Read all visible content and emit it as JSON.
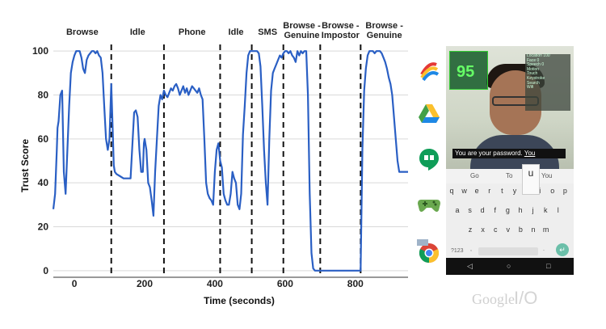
{
  "chart_data": {
    "type": "line",
    "title": "",
    "xlabel": "Time (seconds)",
    "ylabel": "Trust Score",
    "x_ticks": [
      0,
      200,
      400,
      600,
      800
    ],
    "y_ticks": [
      0,
      20,
      40,
      60,
      80,
      100
    ],
    "xlim": [
      -60,
      950
    ],
    "ylim": [
      -3,
      103
    ],
    "series_color": "#2a5fc4",
    "segments": [
      {
        "label": "Browse",
        "start": -60,
        "end": 105
      },
      {
        "label": "Idle",
        "start": 105,
        "end": 255
      },
      {
        "label": "Phone",
        "start": 255,
        "end": 415
      },
      {
        "label": "Idle",
        "start": 415,
        "end": 505
      },
      {
        "label": "SMS",
        "start": 505,
        "end": 595
      },
      {
        "label": "Browse - Genuine",
        "start": 595,
        "end": 700
      },
      {
        "label": "Browse - Impostor",
        "start": 700,
        "end": 815
      },
      {
        "label": "Browse - Genuine",
        "start": 815,
        "end": 950
      }
    ],
    "boundaries": [
      105,
      255,
      415,
      505,
      595,
      700,
      815
    ],
    "series": [
      {
        "x": [
          -60,
          -55,
          -50,
          -48,
          -45,
          -40,
          -35,
          -30,
          -25,
          -20,
          -15,
          -10,
          -5,
          0,
          5,
          10,
          15,
          20,
          25,
          30,
          35,
          40,
          45,
          50,
          55,
          60,
          65,
          70,
          75,
          80,
          85,
          90,
          95,
          100,
          105,
          108,
          112,
          115,
          120,
          130,
          140,
          150,
          160,
          170,
          175,
          180,
          185,
          190,
          195,
          198,
          200,
          205,
          210,
          215,
          220,
          225,
          230,
          235,
          240,
          245,
          250,
          255,
          260,
          265,
          270,
          275,
          280,
          285,
          290,
          295,
          300,
          305,
          310,
          315,
          320,
          325,
          330,
          335,
          340,
          345,
          350,
          355,
          360,
          365,
          370,
          375,
          380,
          385,
          390,
          395,
          400,
          405,
          410,
          415,
          420,
          425,
          430,
          435,
          440,
          445,
          450,
          455,
          460,
          465,
          470,
          475,
          480,
          485,
          490,
          495,
          500,
          505,
          510,
          515,
          520,
          525,
          530,
          535,
          540,
          545,
          550,
          555,
          560,
          565,
          570,
          575,
          580,
          585,
          590,
          595,
          600,
          605,
          610,
          615,
          620,
          625,
          630,
          635,
          640,
          645,
          650,
          655,
          660,
          665,
          670,
          675,
          680,
          685,
          690,
          695,
          700,
          705,
          710,
          715,
          720,
          730,
          760,
          790,
          810,
          815,
          820,
          825,
          830,
          835,
          840,
          845,
          850,
          855,
          860,
          865,
          870,
          875,
          880,
          885,
          890,
          895,
          900,
          905,
          910,
          915,
          920,
          925,
          930,
          940,
          950
        ],
        "y": [
          28,
          35,
          55,
          65,
          68,
          80,
          82,
          45,
          35,
          55,
          75,
          90,
          95,
          98,
          100,
          100,
          100,
          97,
          92,
          90,
          96,
          98,
          99,
          100,
          100,
          99,
          100,
          98,
          97,
          90,
          75,
          60,
          55,
          60,
          85,
          70,
          48,
          45,
          44,
          43,
          42,
          42,
          42,
          72,
          73,
          70,
          55,
          45,
          45,
          58,
          60,
          55,
          40,
          38,
          32,
          25,
          45,
          60,
          75,
          80,
          78,
          82,
          80,
          79,
          81,
          83,
          82,
          84,
          85,
          83,
          80,
          82,
          84,
          81,
          83,
          80,
          82,
          84,
          83,
          82,
          81,
          83,
          80,
          78,
          60,
          40,
          35,
          33,
          32,
          30,
          45,
          55,
          58,
          50,
          47,
          35,
          32,
          30,
          30,
          35,
          45,
          42,
          40,
          30,
          28,
          35,
          62,
          75,
          90,
          98,
          100,
          100,
          100,
          100,
          100,
          99,
          93,
          75,
          55,
          40,
          30,
          60,
          82,
          90,
          92,
          94,
          96,
          98,
          97,
          99,
          100,
          100,
          99,
          100,
          98,
          97,
          95,
          100,
          98,
          100,
          99,
          100,
          100,
          80,
          35,
          8,
          1,
          0,
          0,
          0,
          0,
          0,
          0,
          0,
          0,
          0,
          0,
          0,
          0,
          0,
          55,
          82,
          92,
          98,
          100,
          100,
          100,
          99,
          100,
          100,
          100,
          99,
          97,
          95,
          92,
          88,
          85,
          80,
          70,
          60,
          50,
          45,
          45,
          45,
          45
        ]
      }
    ]
  },
  "app_icons": [
    "pay-app-icon",
    "drive-app-icon",
    "hangouts-app-icon",
    "games-app-icon",
    "chrome-app-icon"
  ],
  "phone": {
    "trust_value": "95",
    "stat_rows": [
      "Location 100",
      "Face 0",
      "Speech 0",
      "Motion",
      "Touch",
      "Keystroke",
      "Search",
      "Wifi"
    ],
    "password_prompt": "You are your password.",
    "password_typed": "You",
    "suggestions": [
      "Go",
      "To",
      "You"
    ],
    "popup_key": "u",
    "keyboard_rows": [
      [
        "q",
        "w",
        "e",
        "r",
        "t",
        "y",
        "u",
        "i",
        "o",
        "p"
      ],
      [
        "a",
        "s",
        "d",
        "f",
        "g",
        "h",
        "j",
        "k",
        "l"
      ],
      [
        "z",
        "x",
        "c",
        "v",
        "b",
        "n",
        "m"
      ]
    ],
    "key_bottom_left": "?123",
    "key_comma": ",",
    "key_period": ".",
    "nav_back": "◁",
    "nav_home": "○",
    "nav_recent": "□"
  },
  "branding": {
    "google": "Google",
    "io": "I/O"
  }
}
